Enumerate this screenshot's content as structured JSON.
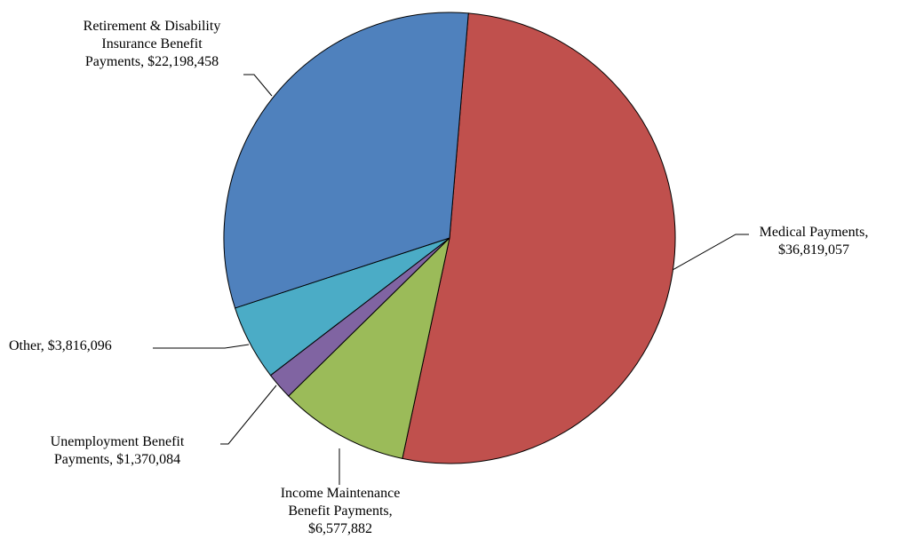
{
  "chart_data": {
    "type": "pie",
    "start_angle_deg": 4.8,
    "direction": "clockwise",
    "slices": [
      {
        "name": "Medical Payments",
        "value": 36819057,
        "value_label": "$36,819,057",
        "label_lines": [
          "Medical Payments,",
          "$36,819,057"
        ],
        "color": "#C0504D"
      },
      {
        "name": "Income Maintenance Benefit Payments",
        "value": 6577882,
        "value_label": "$6,577,882",
        "label_lines": [
          "Income Maintenance",
          "Benefit Payments,",
          "$6,577,882"
        ],
        "color": "#9BBB59"
      },
      {
        "name": "Unemployment Benefit Payments",
        "value": 1370084,
        "value_label": "$1,370,084",
        "label_lines": [
          "Unemployment Benefit",
          "Payments,  $1,370,084"
        ],
        "color": "#8064A2"
      },
      {
        "name": "Other",
        "value": 3816096,
        "value_label": "$3,816,096",
        "label_lines": [
          "Other,  $3,816,096"
        ],
        "color": "#4BACC6"
      },
      {
        "name": "Retirement & Disability Insurance Benefit Payments",
        "value": 22198458,
        "value_label": "$22,198,458",
        "label_lines": [
          "Retirement & Disability",
          "Insurance Benefit",
          "Payments,  $22,198,458"
        ],
        "color": "#4F81BD"
      }
    ]
  }
}
